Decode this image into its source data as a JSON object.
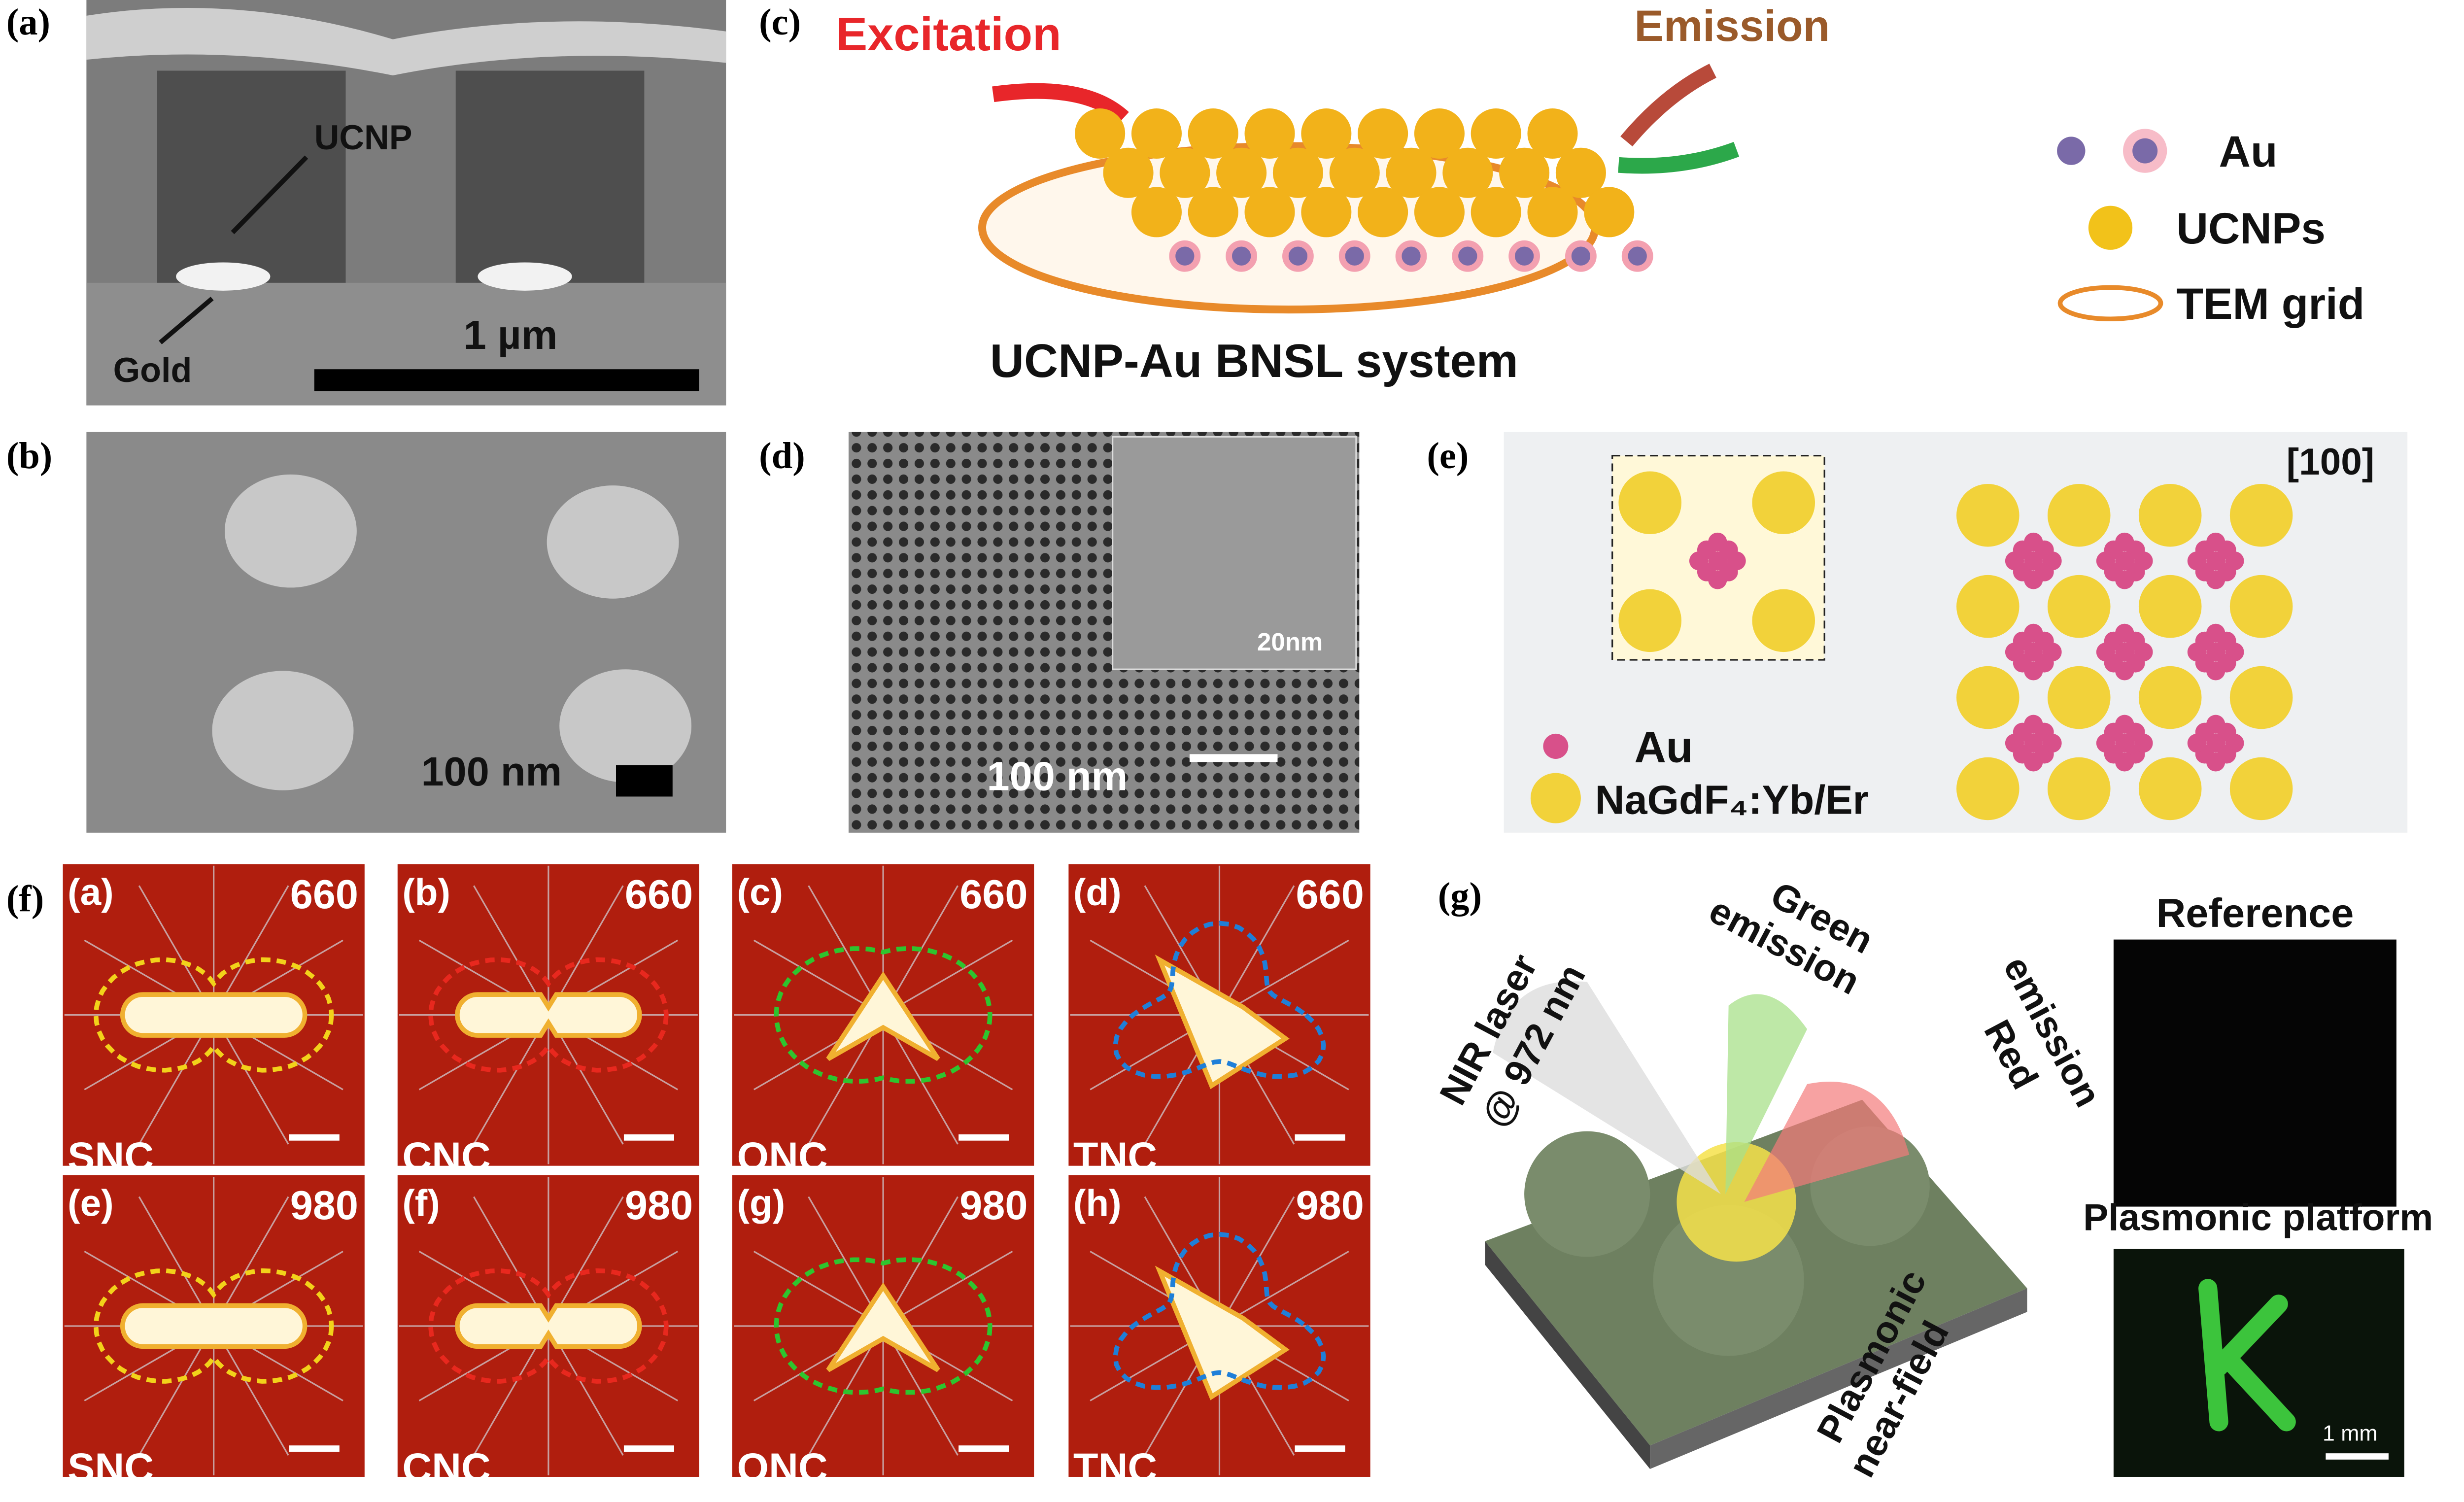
{
  "a": {
    "label": "(a)",
    "ucnp": "UCNP",
    "gold": "Gold",
    "scale": "1 µm"
  },
  "b": {
    "label": "(b)",
    "scale": "100 nm"
  },
  "c": {
    "label": "(c)",
    "excitation": "Excitation",
    "emission": "Emission",
    "caption": "UCNP-Au BNSL system",
    "legend": [
      "Au",
      "UCNPs",
      "TEM grid"
    ]
  },
  "d": {
    "label": "(d)",
    "scale": "100 nm",
    "inset_scale": "20nm"
  },
  "e": {
    "label": "(e)",
    "direction": "[100]",
    "legend": [
      "Au",
      "NaGdF₄:Yb/Er"
    ]
  },
  "f": {
    "label": "(f)",
    "subpanels": [
      {
        "label": "(a)",
        "wavelength": "660",
        "shape": "SNC",
        "color": "#f2d21a"
      },
      {
        "label": "(b)",
        "wavelength": "660",
        "shape": "CNC",
        "color": "#e8281e"
      },
      {
        "label": "(c)",
        "wavelength": "660",
        "shape": "ONC",
        "color": "#2ec42e"
      },
      {
        "label": "(d)",
        "wavelength": "660",
        "shape": "TNC",
        "color": "#1f7fd8"
      },
      {
        "label": "(e)",
        "wavelength": "980",
        "shape": "SNC",
        "color": "#f2d21a"
      },
      {
        "label": "(f)",
        "wavelength": "980",
        "shape": "CNC",
        "color": "#e8281e"
      },
      {
        "label": "(g)",
        "wavelength": "980",
        "shape": "ONC",
        "color": "#2ec42e"
      },
      {
        "label": "(h)",
        "wavelength": "980",
        "shape": "TNC",
        "color": "#1f7fd8"
      }
    ]
  },
  "g": {
    "label": "(g)",
    "laser": [
      "NIR laser",
      "@ 972 nm"
    ],
    "green": [
      "Green",
      "emission"
    ],
    "red": [
      "Red",
      "emission"
    ],
    "nearfield": [
      "Plasmonic",
      "near-field"
    ],
    "reference": "Reference",
    "platform": "Plasmonic platform",
    "scale": "1 mm"
  }
}
